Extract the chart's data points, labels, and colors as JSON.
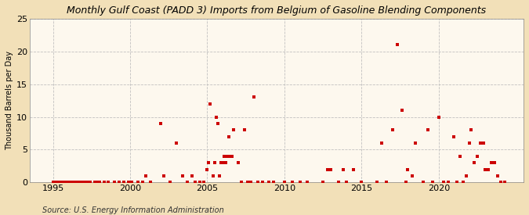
{
  "title": "Monthly Gulf Coast (PADD 3) Imports from Belgium of Gasoline Blending Components",
  "ylabel": "Thousand Barrels per Day",
  "source": "Source: U.S. Energy Information Administration",
  "background_color": "#f2e0b8",
  "plot_background_color": "#fdf8ee",
  "marker_color": "#cc0000",
  "xlim": [
    1993.5,
    2025.5
  ],
  "ylim": [
    0,
    25
  ],
  "yticks": [
    0,
    5,
    10,
    15,
    20,
    25
  ],
  "xticks": [
    1995,
    2000,
    2005,
    2010,
    2015,
    2020
  ],
  "data_x": [
    1995.0,
    1995.1,
    1995.2,
    1995.3,
    1995.4,
    1995.5,
    1995.6,
    1995.7,
    1995.8,
    1995.9,
    1996.0,
    1996.1,
    1996.2,
    1996.3,
    1996.4,
    1996.5,
    1996.6,
    1996.7,
    1996.8,
    1996.9,
    1997.0,
    1997.2,
    1997.4,
    1997.7,
    1997.9,
    1998.0,
    1998.3,
    1998.6,
    1999.0,
    1999.3,
    1999.6,
    1999.9,
    2000.0,
    2000.1,
    2000.5,
    2000.8,
    2001.0,
    2001.3,
    2002.0,
    2002.2,
    2002.6,
    2003.0,
    2003.4,
    2003.7,
    2004.0,
    2004.2,
    2004.5,
    2004.8,
    2005.0,
    2005.1,
    2005.2,
    2005.4,
    2005.5,
    2005.6,
    2005.7,
    2005.8,
    2005.9,
    2006.0,
    2006.1,
    2006.2,
    2006.3,
    2006.4,
    2006.5,
    2006.6,
    2006.7,
    2007.0,
    2007.2,
    2007.4,
    2007.6,
    2007.8,
    2008.0,
    2008.3,
    2008.6,
    2009.0,
    2009.3,
    2010.0,
    2010.5,
    2011.0,
    2011.5,
    2012.5,
    2012.8,
    2013.0,
    2013.5,
    2013.8,
    2014.0,
    2014.5,
    2015.0,
    2016.0,
    2016.3,
    2016.6,
    2017.0,
    2017.3,
    2017.6,
    2017.9,
    2018.0,
    2018.3,
    2018.5,
    2019.0,
    2019.3,
    2019.6,
    2020.0,
    2020.3,
    2020.6,
    2021.0,
    2021.2,
    2021.4,
    2021.6,
    2021.8,
    2022.0,
    2022.1,
    2022.3,
    2022.5,
    2022.7,
    2022.9,
    2023.0,
    2023.2,
    2023.4,
    2023.6,
    2023.8,
    2024.0,
    2024.3
  ],
  "data_y": [
    0,
    0,
    0,
    0,
    0,
    0,
    0,
    0,
    0,
    0,
    0,
    0,
    0,
    0,
    0,
    0,
    0,
    0,
    0,
    0,
    0,
    0,
    0,
    0,
    0,
    0,
    0,
    0,
    0,
    0,
    0,
    0,
    0,
    0,
    0,
    0,
    1,
    0,
    9,
    1,
    0,
    6,
    1,
    0,
    1,
    0,
    0,
    0,
    2,
    3,
    12,
    1,
    3,
    10,
    9,
    1,
    3,
    3,
    4,
    3,
    4,
    7,
    4,
    4,
    8,
    3,
    0,
    8,
    0,
    0,
    13,
    0,
    0,
    0,
    0,
    0,
    0,
    0,
    0,
    0,
    2,
    2,
    0,
    2,
    0,
    2,
    0,
    0,
    6,
    0,
    8,
    21,
    11,
    0,
    2,
    1,
    6,
    0,
    8,
    0,
    10,
    0,
    0,
    7,
    0,
    4,
    0,
    1,
    6,
    8,
    3,
    4,
    6,
    6,
    2,
    2,
    3,
    3,
    1,
    0,
    0
  ],
  "title_fontsize": 9,
  "ylabel_fontsize": 7,
  "tick_labelsize": 8,
  "source_fontsize": 7
}
